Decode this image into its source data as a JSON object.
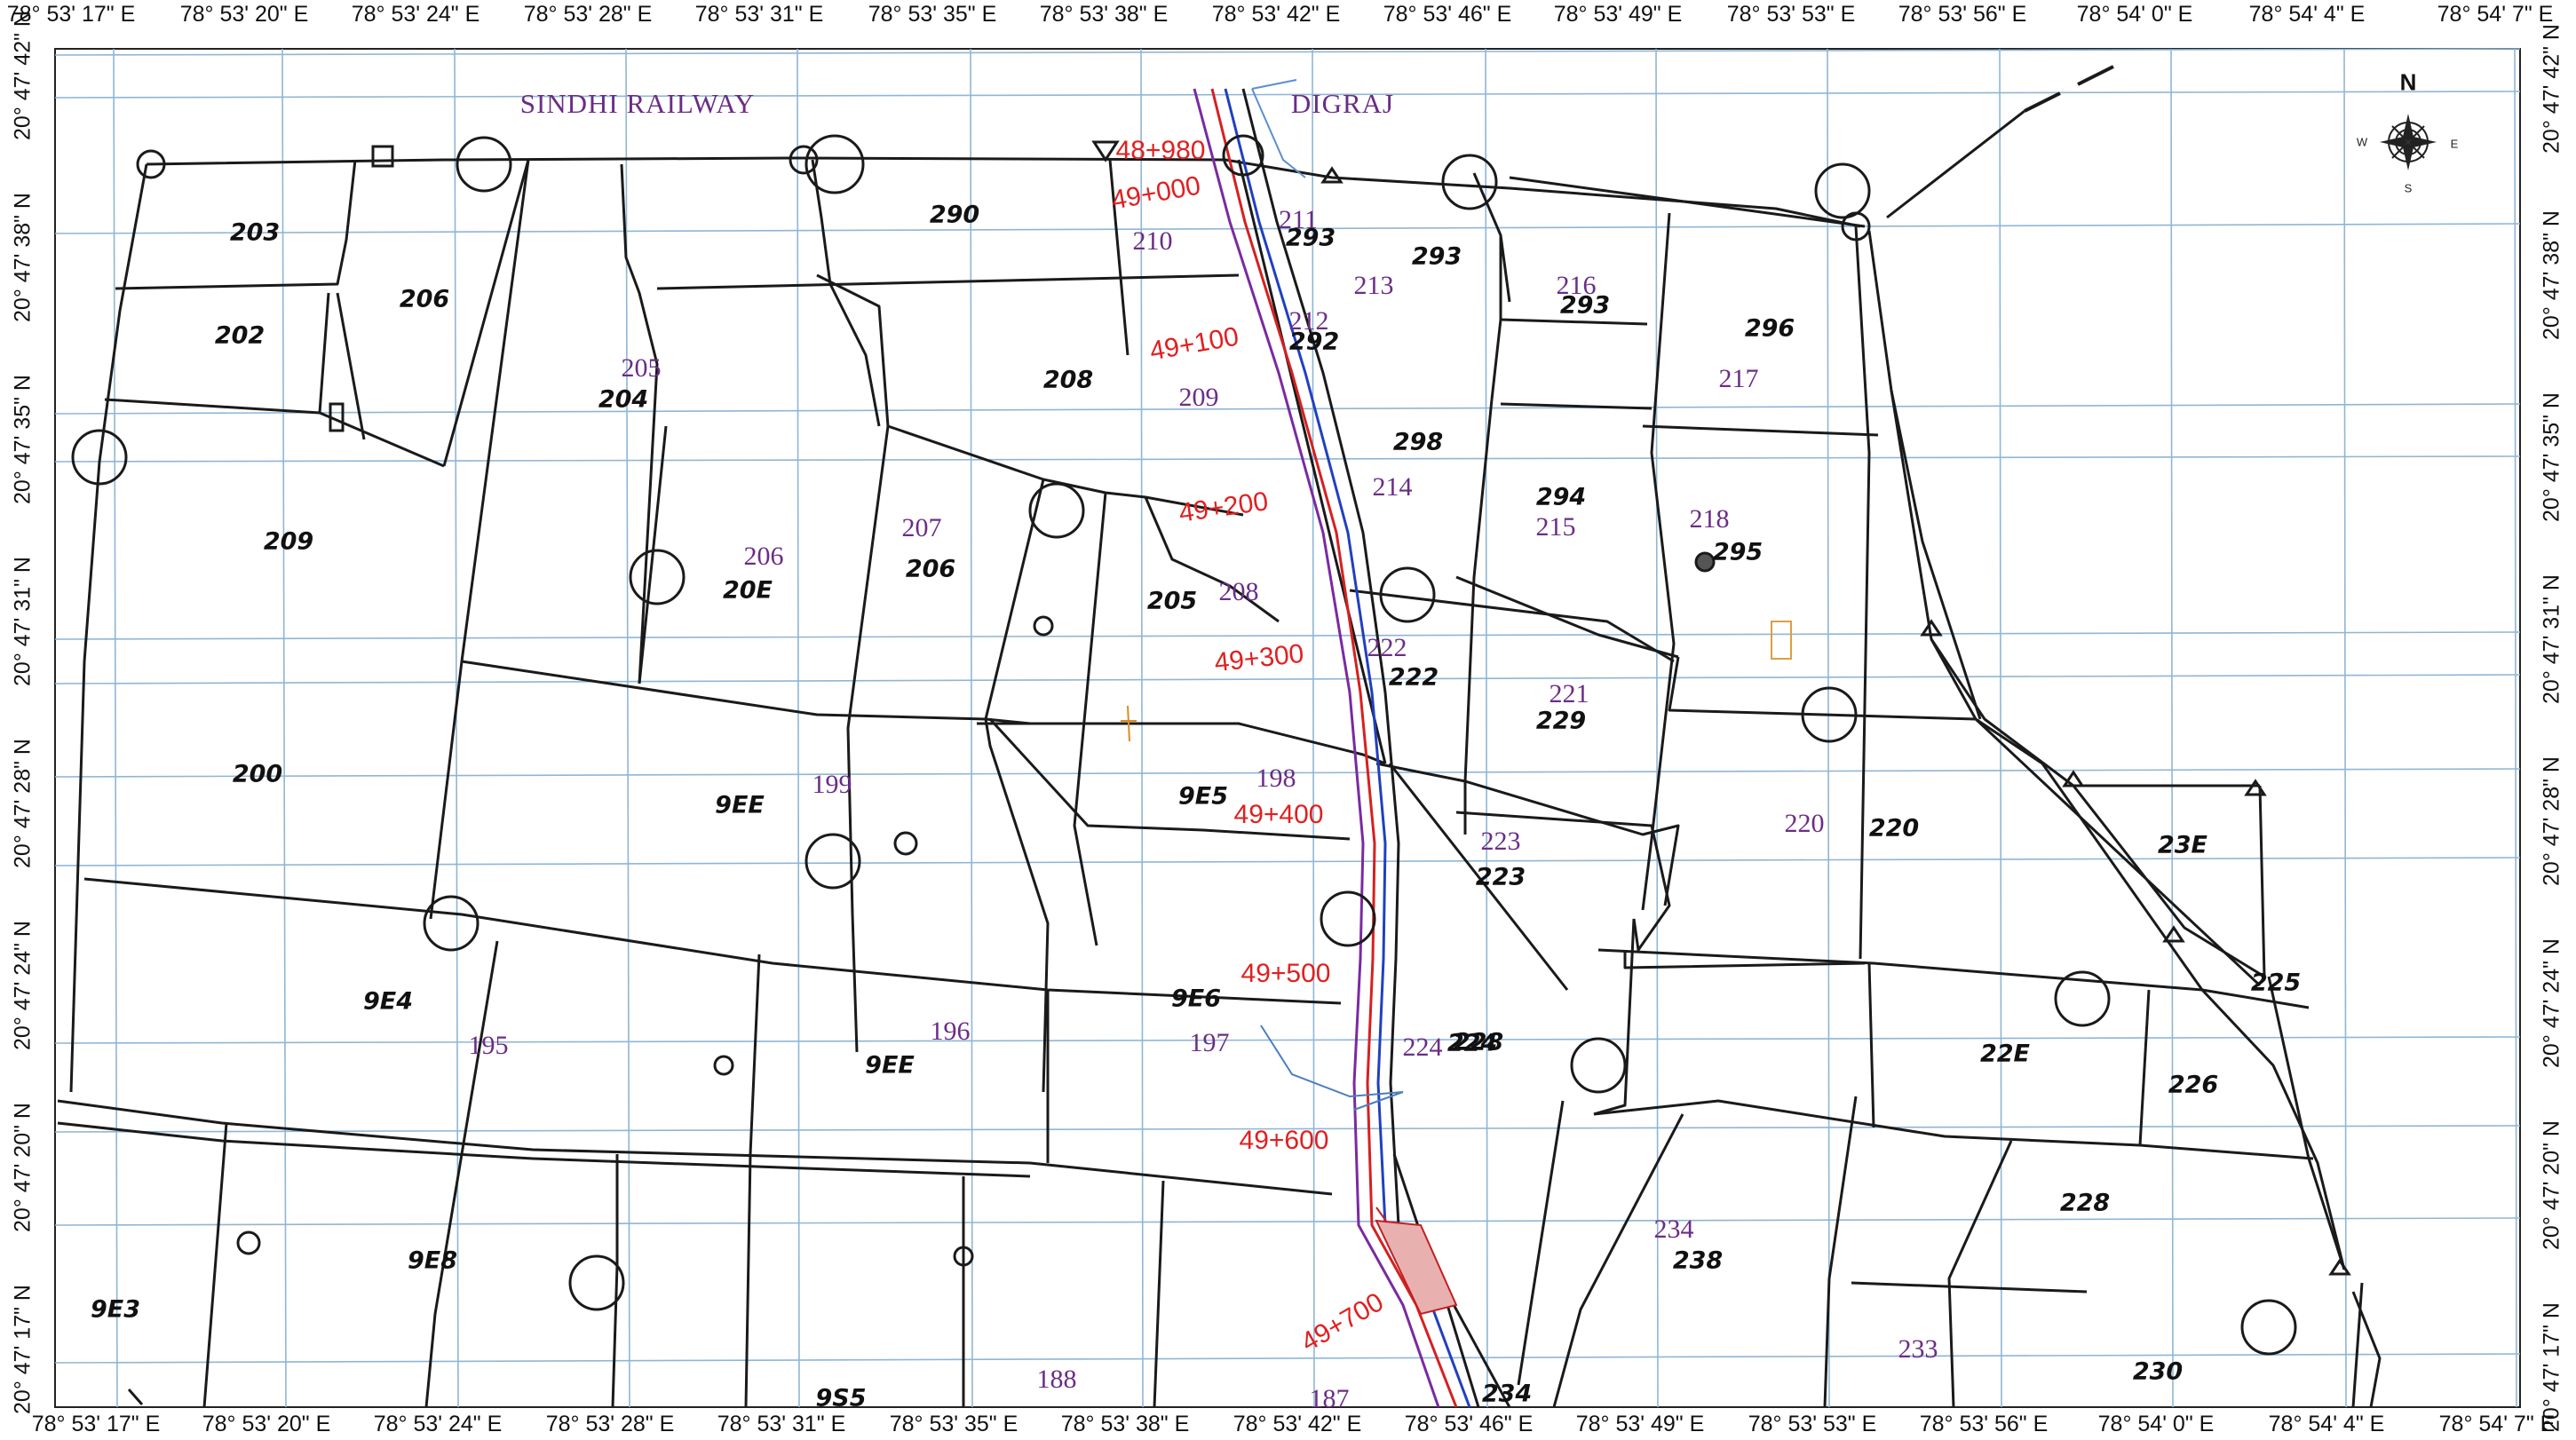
{
  "map": {
    "coords_top": [
      "78° 53' 17\" E",
      "78° 53' 20\" E",
      "78° 53' 24\" E",
      "78° 53' 28\" E",
      "78° 53' 31\" E",
      "78° 53' 35\" E",
      "78° 53' 38\" E",
      "78° 53' 42\" E",
      "78° 53' 46\" E",
      "78° 53' 49\" E",
      "78° 53' 53\" E",
      "78° 53' 56\" E",
      "78° 54' 0\" E",
      "78° 54' 4\" E",
      "78° 54' 7\" E"
    ],
    "coords_bottom": [
      "78° 53' 17\" E",
      "78° 53' 20\" E",
      "78° 53' 24\" E",
      "78° 53' 28\" E",
      "78° 53' 31\" E",
      "78° 53' 35\" E",
      "78° 53' 38\" E",
      "78° 53' 42\" E",
      "78° 53' 46\" E",
      "78° 53' 49\" E",
      "78° 53' 53\" E",
      "78° 53' 56\" E",
      "78° 54' 0\" E",
      "78° 54' 4\" E",
      "78° 54' 7\" E"
    ],
    "coords_left": [
      "20° 47' 42\" N",
      "20° 47' 38\" N",
      "20° 47' 35\" N",
      "20° 47' 31\" N",
      "20° 47' 28\" N",
      "20° 47' 24\" N",
      "20° 47' 20\" N",
      "20° 47' 17\" N"
    ],
    "coords_right": [
      "20° 47' 42\" N",
      "20° 47' 38\" N",
      "20° 47' 35\" N",
      "20° 47' 31\" N",
      "20° 47' 28\" N",
      "20° 47' 24\" N",
      "20° 47' 20\" N",
      "20° 47' 17\" N"
    ],
    "villages": [
      "SINDHI RAILWAY",
      "DIGRAJ"
    ],
    "chainages": [
      "48+980",
      "49+000",
      "49+100",
      "49+200",
      "49+300",
      "49+400",
      "49+500",
      "49+600",
      "49+700"
    ],
    "plot_numbers_purple": [
      "210",
      "211",
      "213",
      "212",
      "209",
      "205",
      "216",
      "217",
      "214",
      "215",
      "218",
      "206",
      "207",
      "208",
      "222",
      "221",
      "199",
      "198",
      "223",
      "220",
      "195",
      "196",
      "197",
      "224",
      "234",
      "233",
      "188",
      "187"
    ],
    "plot_numbers_handwritten": [
      "203",
      "202",
      "206",
      "204",
      "209",
      "290",
      "293",
      "293",
      "293",
      "296",
      "208",
      "292",
      "298",
      "294",
      "295",
      "20E",
      "206",
      "205",
      "222",
      "229",
      "200",
      "9EE",
      "9E5",
      "9E4",
      "9E6",
      "223",
      "224",
      "228",
      "22E",
      "226",
      "225",
      "23E",
      "220",
      "9EE",
      "9E3",
      "9E8",
      "238",
      "228",
      "230",
      "234",
      "9S5"
    ],
    "compass": {
      "n": "N",
      "w": "W",
      "e": "E",
      "s": "S"
    },
    "colors": {
      "grid": "#8eb6d6",
      "parcel": "#1a1a1a",
      "chainage": "#e02020",
      "plot_purple": "#6b2d86",
      "route_red": "#d62020",
      "route_blue": "#2040c0",
      "route_purple": "#7a2aa0"
    }
  }
}
